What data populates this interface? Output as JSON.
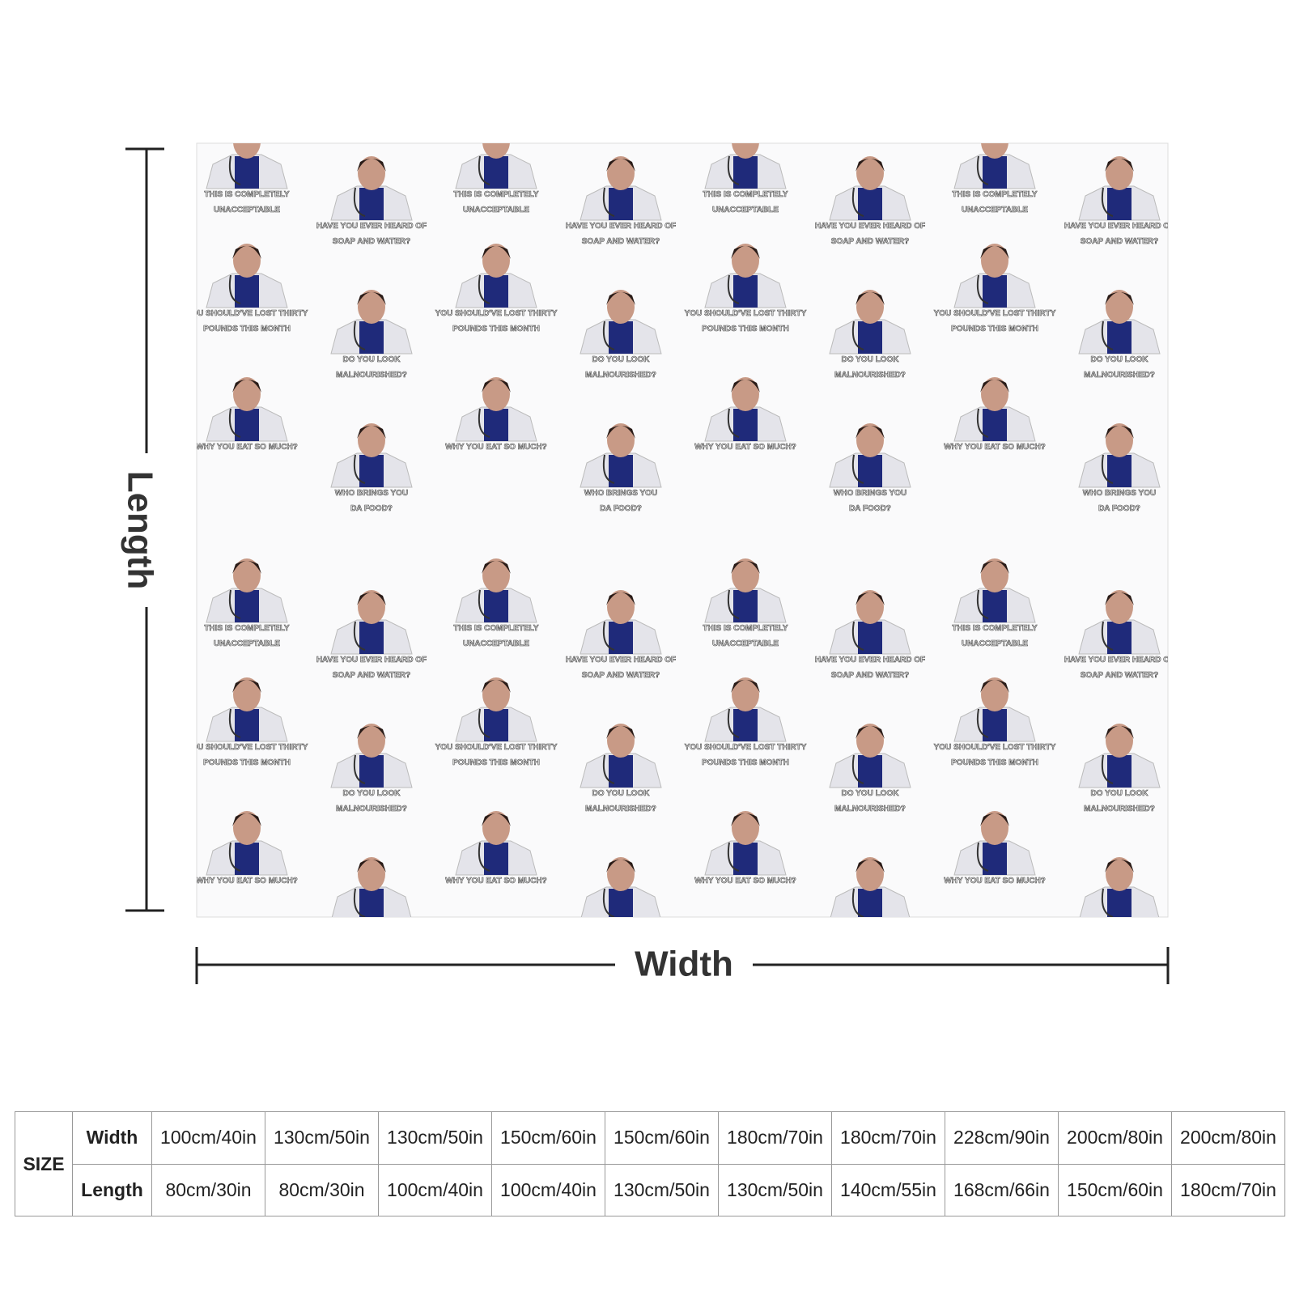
{
  "diagram": {
    "length_label": "Length",
    "width_label": "Width",
    "captions": [
      [
        "THIS IS COMPLETELY",
        "UNACCEPTABLE"
      ],
      [
        "YOU SHOULD'VE LOST THIRTY",
        "POUNDS THIS MONTH"
      ],
      [
        "WHY YOU EAT SO MUCH?"
      ],
      [
        "HAVE YOU EVER HEARD OF",
        "SOAP AND WATER?"
      ],
      [
        "DO YOU LOOK",
        "MALNOURISHED?"
      ],
      [
        "WHO BRINGS YOU",
        "DA FOOD?"
      ]
    ]
  },
  "table": {
    "size_label": "SIZE",
    "rows": [
      {
        "label": "Width",
        "values": [
          "100cm/40in",
          "130cm/50in",
          "130cm/50in",
          "150cm/60in",
          "150cm/60in",
          "180cm/70in",
          "180cm/70in",
          "228cm/90in",
          "200cm/80in",
          "200cm/80in"
        ]
      },
      {
        "label": "Length",
        "values": [
          "80cm/30in",
          "80cm/30in",
          "100cm/40in",
          "100cm/40in",
          "130cm/50in",
          "130cm/50in",
          "140cm/55in",
          "168cm/66in",
          "150cm/60in",
          "180cm/70in"
        ]
      }
    ]
  }
}
